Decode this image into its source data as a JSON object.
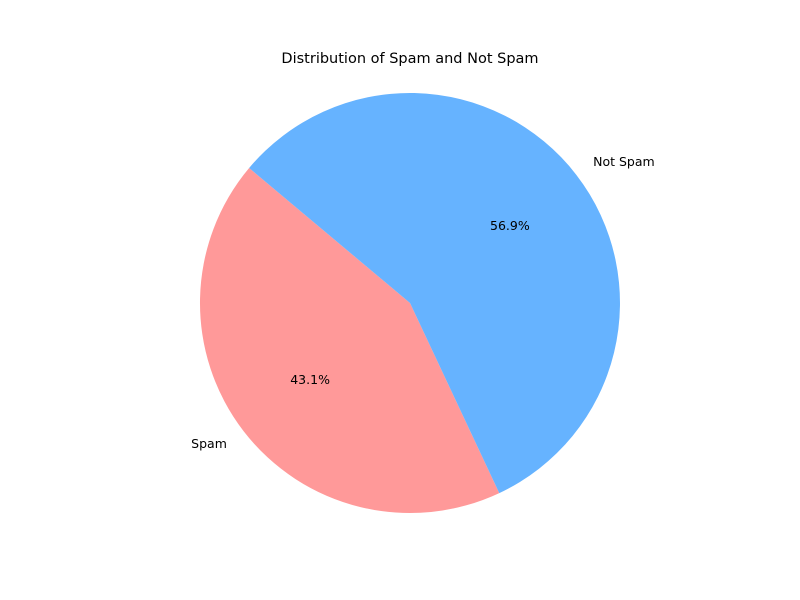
{
  "chart_data": {
    "type": "pie",
    "title": "Distribution of Spam and Not Spam",
    "categories": [
      "Spam",
      "Not Spam"
    ],
    "values": [
      43.1,
      56.9
    ],
    "value_labels": [
      "43.1%",
      "56.9%"
    ],
    "colors": [
      "#ff9999",
      "#66b3ff"
    ],
    "start_angle_deg": 140,
    "direction": "counterclockwise",
    "legend": "none"
  }
}
